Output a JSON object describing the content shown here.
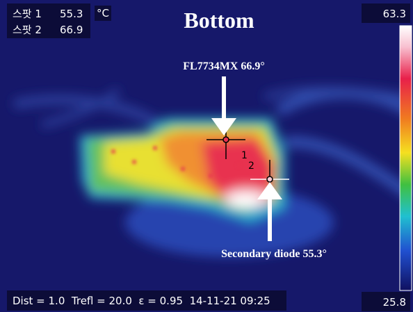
{
  "spots": [
    {
      "label": "스팟 1",
      "value": 55.3
    },
    {
      "label": "스팟 2",
      "value": 66.9
    }
  ],
  "unit": "°C",
  "title": "Bottom",
  "scale": {
    "max": 63.3,
    "min": 25.8
  },
  "markers": [
    "1",
    "2"
  ],
  "annotations": [
    "FL7734MX 66.9°",
    "Secondary diode 55.3°"
  ],
  "footer": "Dist = 1.0  Trefl = 20.0  ε = 0.95  14-11-21 09:25"
}
